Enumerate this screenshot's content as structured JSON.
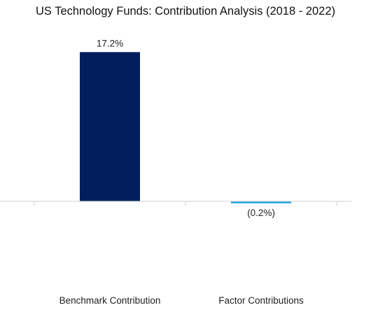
{
  "chart_data": {
    "type": "bar",
    "title": "US Technology Funds: Contribution Analysis (2018 - 2022)",
    "categories": [
      "Benchmark Contribution",
      "Factor Contributions"
    ],
    "values": [
      17.2,
      -0.2
    ],
    "data_labels": [
      "17.2%",
      "(0.2%)"
    ],
    "colors": [
      "#001f5c",
      "#29a8e0"
    ],
    "ylim": [
      -10,
      20
    ],
    "grid": false,
    "legend": "none",
    "xlabel": "",
    "ylabel": ""
  }
}
